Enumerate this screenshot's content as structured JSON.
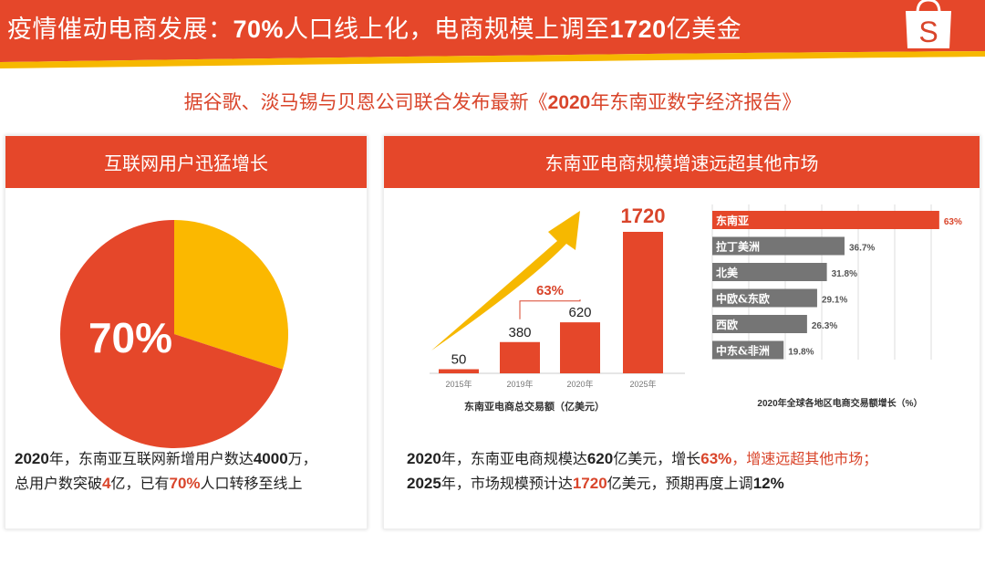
{
  "header": {
    "title_parts": [
      "疫情催动电商发展：",
      "70%",
      "人口线上化，电商规模上调至",
      "1720",
      "亿美金"
    ],
    "logo": "S",
    "logo_icon": "shopping-bag-icon"
  },
  "subtitle_parts": [
    "据谷歌、淡马锡与贝恩公司联合发布最新《",
    "2020",
    "年东南亚数字经济报告》"
  ],
  "left": {
    "heading": "互联网用户迅猛增长",
    "line1": [
      [
        "2020",
        "b"
      ],
      [
        "年，东南亚互联网新增用户数达",
        ""
      ],
      [
        "4000",
        "b"
      ],
      [
        "万，",
        ""
      ]
    ],
    "line2": [
      [
        "总用户数突破",
        ""
      ],
      [
        "4",
        "b r"
      ],
      [
        "亿，已有",
        ""
      ],
      [
        "70%",
        "b r"
      ],
      [
        "人口转移至线上",
        ""
      ]
    ]
  },
  "right": {
    "heading": "东南亚电商规模增速远超其他市场",
    "line1": [
      [
        "2020",
        "b"
      ],
      [
        "年，东南亚电商规模达",
        ""
      ],
      [
        "620",
        "b"
      ],
      [
        "亿美元，增长",
        ""
      ],
      [
        "63%",
        "b r"
      ],
      [
        "，增速远超其他市场；",
        "r"
      ]
    ],
    "line2": [
      [
        "2025",
        "b"
      ],
      [
        "年，市场规模预计达",
        ""
      ],
      [
        "1720",
        "b r"
      ],
      [
        "亿美元，预期再度上调",
        ""
      ],
      [
        "12%",
        "b"
      ]
    ]
  },
  "colors": {
    "red": "#e5472a",
    "yellow": "#f6b800",
    "gray": "#757575"
  },
  "chart_data": [
    {
      "type": "pie",
      "values": [
        70,
        30
      ],
      "colors": [
        "#e5472a",
        "#fbb800"
      ],
      "data_labels": [
        "70%"
      ]
    },
    {
      "type": "bar",
      "categories": [
        "2015年",
        "2019年",
        "2020年",
        "2025年"
      ],
      "values": [
        50,
        380,
        620,
        1720
      ],
      "xlabel": "东南亚电商总交易额（亿美元）",
      "annotations": [
        "63%"
      ]
    },
    {
      "type": "bar",
      "orientation": "horizontal",
      "categories": [
        "东南亚",
        "拉丁美洲",
        "北美",
        "中欧&东欧",
        "西欧",
        "中东&非洲"
      ],
      "values": [
        63,
        36.7,
        31.8,
        29.1,
        26.3,
        19.8
      ],
      "data_labels": [
        "63%",
        "36.7%",
        "31.8%",
        "29.1%",
        "26.3%",
        "19.8%"
      ],
      "xlabel": "2020年全球各地区电商交易额增长（%）",
      "grid": true
    }
  ]
}
